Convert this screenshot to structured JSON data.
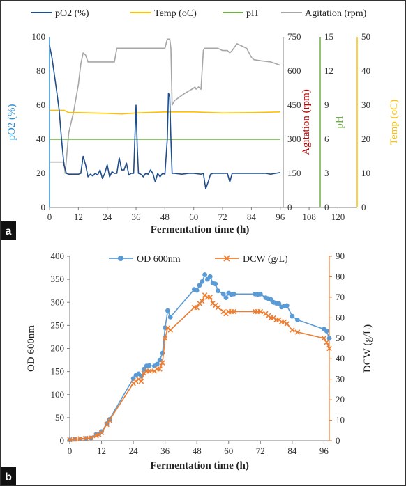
{
  "panels": {
    "a": {
      "label": "a"
    },
    "b": {
      "label": "b"
    }
  },
  "chart_data": [
    {
      "type": "line",
      "panel": "a",
      "xlabel": "Fermentation time (h)",
      "x_ticks": [
        0,
        12,
        24,
        36,
        48,
        60,
        72,
        84,
        96,
        108,
        120
      ],
      "xlim": [
        0,
        128
      ],
      "axes": {
        "po2": {
          "label": "pO2 (%)",
          "ylim": [
            0,
            100
          ],
          "ticks": [
            0,
            20,
            40,
            60,
            80,
            100
          ],
          "color": "#1f4e8c",
          "label_color": "#2a8fd6"
        },
        "agitation": {
          "label": "Agitation (rpm)",
          "ylim": [
            0,
            750
          ],
          "ticks": [
            0,
            150,
            300,
            450,
            600,
            750
          ],
          "color": "#a6a6a6",
          "label_color": "#c00000"
        },
        "ph": {
          "label": "pH",
          "ylim": [
            0,
            15
          ],
          "ticks": [
            0,
            3,
            6,
            9,
            12,
            15
          ],
          "color": "#70ad47",
          "label_color": "#70ad47"
        },
        "temp": {
          "label": "Temp (oC)",
          "ylim": [
            0,
            50
          ],
          "ticks": [
            0,
            10,
            20,
            30,
            40,
            50
          ],
          "color": "#ffc000",
          "label_color": "#ffc000"
        }
      },
      "legend_position": "top",
      "series": [
        {
          "name": "pO2 (%)",
          "axis": "po2",
          "color": "#1f4e8c",
          "x": [
            0,
            1,
            2,
            3,
            4,
            5,
            6,
            7,
            8,
            10,
            12,
            13,
            14,
            15,
            16,
            17,
            18,
            19,
            20,
            21,
            22,
            23,
            24,
            25,
            26,
            27,
            28,
            29,
            30,
            31,
            32,
            33,
            34,
            35,
            35.5,
            36,
            36.5,
            37,
            38,
            39,
            40,
            41,
            42,
            43,
            44,
            45,
            46,
            47,
            48,
            49,
            49.5,
            50,
            50.5,
            51,
            52,
            55,
            58,
            60,
            63,
            64,
            65,
            66,
            67,
            68,
            70,
            72,
            74,
            75,
            76,
            78,
            80,
            82,
            84,
            86,
            88,
            90,
            92,
            94,
            96
          ],
          "y": [
            95,
            88,
            78,
            68,
            57,
            40,
            25,
            20,
            19.5,
            19.5,
            19.5,
            20,
            30,
            25,
            18,
            19.5,
            18.5,
            20,
            19,
            22,
            17,
            20,
            25,
            18,
            21,
            20,
            20,
            29,
            22,
            22,
            26,
            19,
            20,
            20,
            40,
            60,
            35,
            20,
            19.5,
            18,
            20,
            19.5,
            22,
            20,
            15,
            20,
            18,
            20,
            19.5,
            40,
            67,
            65,
            40,
            20,
            20,
            19.5,
            20,
            20,
            19.5,
            20,
            11,
            15,
            19.5,
            20,
            20,
            20,
            20,
            15,
            20,
            20,
            20,
            20,
            20,
            20,
            20,
            20,
            19.5,
            20,
            20.5
          ]
        },
        {
          "name": "Temp (oC)",
          "axis": "temp",
          "color": "#ffc000",
          "x": [
            0,
            6,
            8,
            12,
            24,
            30,
            36,
            48,
            60,
            72,
            84,
            96
          ],
          "y": [
            28.5,
            28.5,
            27.8,
            27.8,
            27.6,
            27.4,
            27.7,
            28.0,
            28.0,
            27.7,
            27.8,
            28.0
          ]
        },
        {
          "name": "pH",
          "axis": "ph",
          "color": "#70ad47",
          "x": [
            0,
            24,
            48,
            72,
            96
          ],
          "y": [
            6.0,
            6.0,
            6.0,
            6.0,
            6.0
          ]
        },
        {
          "name": "Agitation (rpm)",
          "axis": "agitation",
          "color": "#a6a6a6",
          "x": [
            0,
            6,
            6.5,
            8,
            10,
            12,
            13,
            14,
            15,
            16,
            24,
            27,
            28,
            36,
            46,
            48,
            49,
            50,
            50.5,
            51,
            52,
            56,
            60,
            60.5,
            61,
            62,
            63,
            64,
            64.5,
            66,
            70,
            72,
            74,
            75,
            76,
            78,
            80,
            82,
            84,
            85,
            88,
            92,
            96
          ],
          "y": [
            200,
            200,
            150,
            330,
            420,
            540,
            630,
            680,
            670,
            640,
            640,
            640,
            700,
            700,
            700,
            700,
            740,
            740,
            700,
            450,
            470,
            500,
            525,
            530,
            520,
            530,
            520,
            690,
            700,
            700,
            700,
            690,
            690,
            680,
            690,
            720,
            710,
            700,
            660,
            650,
            645,
            640,
            625
          ]
        }
      ]
    },
    {
      "type": "line",
      "panel": "b",
      "xlabel": "Fermentation time (h)",
      "x_ticks": [
        0,
        12,
        24,
        36,
        48,
        60,
        72,
        84,
        96
      ],
      "xlim": [
        0,
        98
      ],
      "axes": {
        "od": {
          "label": "OD 600nm",
          "ylim": [
            0,
            400
          ],
          "ticks": [
            0,
            50,
            100,
            150,
            200,
            250,
            300,
            350,
            400
          ],
          "color": "#333333"
        },
        "dcw": {
          "label": "DCW (g/L)",
          "ylim": [
            0,
            90
          ],
          "ticks": [
            0,
            10,
            20,
            30,
            40,
            50,
            60,
            70,
            80,
            90
          ],
          "color": "#ed7d31"
        }
      },
      "legend_position": "top",
      "series": [
        {
          "name": "OD 600nm",
          "axis": "od",
          "color": "#5b9bd5",
          "marker": "circle",
          "x": [
            0,
            2,
            4,
            6,
            8,
            10,
            11,
            12,
            14,
            15,
            24,
            25,
            26,
            27,
            28,
            29,
            30,
            32,
            33,
            34,
            35,
            36,
            37,
            38,
            47,
            48,
            49,
            50,
            51,
            52,
            53,
            54,
            55,
            56,
            58,
            59,
            60,
            61,
            62,
            70,
            71,
            72,
            74,
            75,
            76,
            77,
            78,
            79,
            80,
            81,
            82,
            84,
            86,
            96,
            97,
            98
          ],
          "y": [
            2,
            3,
            4,
            5,
            6,
            14,
            15,
            20,
            37,
            46,
            135,
            142,
            145,
            140,
            155,
            162,
            163,
            162,
            166,
            175,
            190,
            245,
            282,
            268,
            328,
            326,
            337,
            345,
            360,
            350,
            356,
            342,
            340,
            325,
            318,
            310,
            320,
            317,
            318,
            318,
            317,
            318,
            310,
            308,
            306,
            300,
            298,
            297,
            290,
            292,
            293,
            270,
            262,
            242,
            238,
            222
          ]
        },
        {
          "name": "DCW (g/L)",
          "axis": "dcw",
          "color": "#ed7d31",
          "marker": "x",
          "x": [
            0,
            2,
            4,
            6,
            8,
            10,
            11,
            12,
            14,
            15,
            24,
            25,
            26,
            27,
            28,
            29,
            30,
            32,
            33,
            34,
            35,
            36,
            37,
            38,
            47,
            48,
            49,
            50,
            51,
            52,
            53,
            54,
            55,
            56,
            58,
            59,
            60,
            61,
            62,
            70,
            71,
            72,
            74,
            75,
            76,
            77,
            78,
            79,
            80,
            81,
            82,
            84,
            86,
            96,
            97,
            98
          ],
          "y": [
            0.5,
            0.7,
            1,
            1.2,
            1.5,
            2.5,
            3,
            4,
            8,
            10,
            28,
            29,
            30,
            29,
            33,
            34,
            34,
            34,
            35,
            35,
            38,
            50,
            55,
            54,
            65,
            65,
            67,
            68,
            71,
            70,
            70,
            67,
            66,
            65,
            63,
            62,
            63,
            63,
            63,
            63,
            63,
            63,
            62,
            61,
            60,
            60,
            59,
            59,
            58,
            58,
            57,
            54,
            53,
            50,
            48,
            45
          ]
        }
      ]
    }
  ]
}
